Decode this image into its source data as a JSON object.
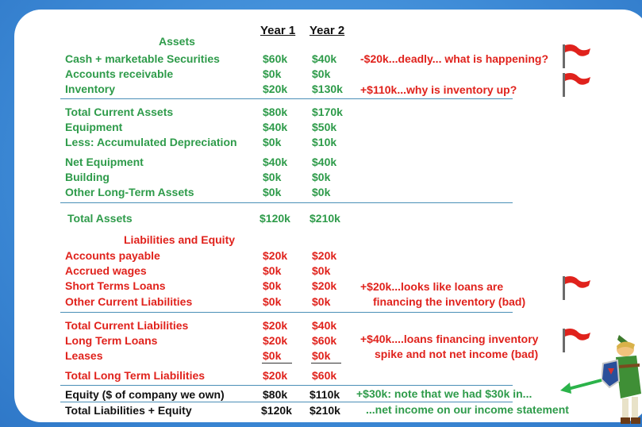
{
  "headers": {
    "year1": "Year 1",
    "year2": "Year 2"
  },
  "sections": {
    "assets": "Assets",
    "liabilities_equity": "Liabilities and Equity"
  },
  "rows": [
    {
      "label": "Cash + marketable Securities",
      "y1": "$60k",
      "y2": "$40k"
    },
    {
      "label": "Accounts receivable",
      "y1": "$0k",
      "y2": "$0k"
    },
    {
      "label": "Inventory",
      "y1": "$20k",
      "y2": "$130k"
    },
    {
      "label": "Total Current Assets",
      "y1": "$80k",
      "y2": "$170k"
    },
    {
      "label": "Equipment",
      "y1": "$40k",
      "y2": "$50k"
    },
    {
      "label": "Less: Accumulated Depreciation",
      "y1": "$0k",
      "y2": "$10k"
    },
    {
      "label": "Net Equipment",
      "y1": "$40k",
      "y2": "$40k"
    },
    {
      "label": "Building",
      "y1": "$0k",
      "y2": "$0k"
    },
    {
      "label": "Other Long-Term Assets",
      "y1": "$0k",
      "y2": "$0k"
    },
    {
      "label": "Total Assets",
      "y1": "$120k",
      "y2": "$210k"
    },
    {
      "label": "Accounts payable",
      "y1": "$20k",
      "y2": "$20k"
    },
    {
      "label": "Accrued wages",
      "y1": "$0k",
      "y2": "$0k"
    },
    {
      "label": "Short Terms Loans",
      "y1": "$0k",
      "y2": "$20k"
    },
    {
      "label": "Other Current Liabilities",
      "y1": "$0k",
      "y2": "$0k"
    },
    {
      "label": "Total Current Liabilities",
      "y1": "$20k",
      "y2": "$40k"
    },
    {
      "label": "Long Term Loans",
      "y1": "$20k",
      "y2": "$60k"
    },
    {
      "label": "Leases",
      "y1": "$0k",
      "y2": "$0k"
    },
    {
      "label": "Total Long Term Liabilities",
      "y1": "$20k",
      "y2": "$60k"
    },
    {
      "label": "Equity ($ of company we own)",
      "y1": "$80k",
      "y2": "$110k"
    },
    {
      "label": "Total Liabilities + Equity",
      "y1": "$120k",
      "y2": "$210k"
    }
  ],
  "notes": {
    "cash": "-$20k...deadly... what is happening?",
    "inventory": "+$110k...why is inventory up?",
    "loans_1": "+$20k...looks like loans are",
    "loans_2": "financing the inventory (bad)",
    "ltloans_1": "+$40k....loans financing inventory",
    "ltloans_2": "spike and not net income (bad)",
    "equity_1": "+$30k: note that we had $30k in...",
    "equity_2": "...net income on our income statement"
  },
  "colors": {
    "asset_green": "#2e9b4a",
    "liability_red": "#e0221c",
    "flag_red": "#e0221c",
    "arrow_green": "#2bb34a",
    "background_blue": "#3d8ad6"
  },
  "icons": [
    "red-flag-icon",
    "green-arrow-icon",
    "green-tunic-character-icon"
  ]
}
